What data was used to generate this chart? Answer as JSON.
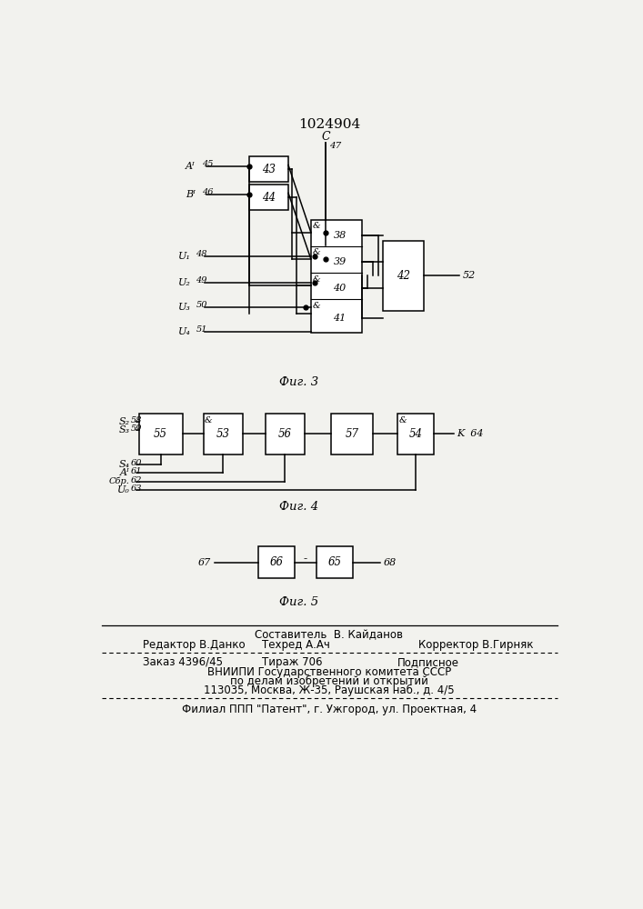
{
  "title": "1024904",
  "bg_color": "#f2f2ee",
  "fig3_caption": "Фиг. 3",
  "fig4_caption": "Фиг. 4",
  "fig5_caption": "Фиг. 5",
  "footer_lines": [
    "Составитель  В. Кайданов",
    "Редактор В.Данко",
    "Техред А.Ач",
    "Корректор В.Гирняк",
    "Заказ 4396/45",
    "Тираж 706",
    "Подписное",
    "ВНИИПИ Государственного комитета СССР",
    "по делам изобретений и открытий",
    "113035, Москва, Ж-35, Раушская наб., д. 4/5",
    "Филиал ППП \"Патент\", г. Ужгород, ул. Проектная, 4"
  ]
}
